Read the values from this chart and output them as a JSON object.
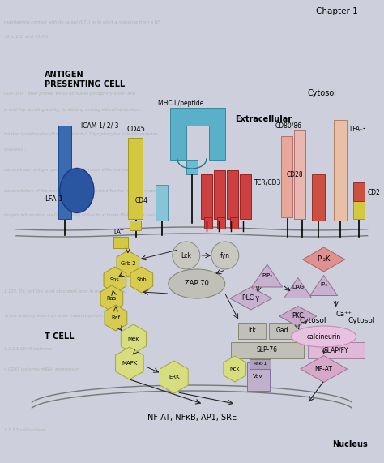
{
  "title": "Chapter 1",
  "bg_color": "#cdd0dc",
  "antigen_cell_label": "ANTIGEN\nPRESENTING CELL",
  "t_cell_label": "T CELL",
  "cytosol_label": "Cytosol",
  "nucleus_label": "Nucleus",
  "extracellular_label": "Extracellular",
  "bottom_text": "NF-AT, NFκB, AP1, SRE"
}
